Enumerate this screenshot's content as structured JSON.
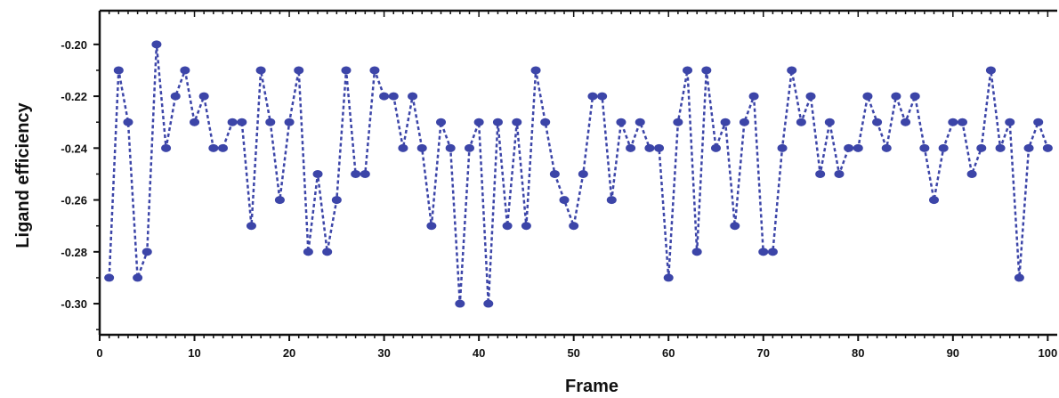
{
  "chart_data": {
    "type": "line",
    "title": "",
    "xlabel": "Frame",
    "ylabel": "Ligand efficiency",
    "xlim": [
      0,
      101
    ],
    "ylim": [
      -0.312,
      -0.187
    ],
    "x_ticks": [
      0,
      10,
      20,
      30,
      40,
      50,
      60,
      70,
      80,
      90,
      100
    ],
    "y_ticks": [
      -0.3,
      -0.28,
      -0.26,
      -0.24,
      -0.22,
      -0.2
    ],
    "y_tick_labels": [
      "-0.30",
      "-0.28",
      "-0.26",
      "-0.24",
      "-0.22",
      "-0.20"
    ],
    "grid": false,
    "legend": "none",
    "line_style": "dotted",
    "color": "#3c45a8",
    "series": [
      {
        "x": [
          1,
          2,
          3,
          4,
          5,
          6,
          7,
          8,
          9,
          10,
          11,
          12,
          13,
          14,
          15,
          16,
          17,
          18,
          19,
          20,
          21,
          22,
          23,
          24,
          25,
          26,
          27,
          28,
          29,
          30,
          31,
          32,
          33,
          34,
          35,
          36,
          37,
          38,
          39,
          40,
          41,
          42,
          43,
          44,
          45,
          46,
          47,
          48,
          49,
          50,
          51,
          52,
          53,
          54,
          55,
          56,
          57,
          58,
          59,
          60,
          61,
          62,
          63,
          64,
          65,
          66,
          67,
          68,
          69,
          70,
          71,
          72,
          73,
          74,
          75,
          76,
          77,
          78,
          79,
          80,
          81,
          82,
          83,
          84,
          85,
          86,
          87,
          88,
          89,
          90,
          91,
          92,
          93,
          94,
          95,
          96,
          97,
          98,
          99,
          100
        ],
        "values": [
          -0.29,
          -0.21,
          -0.23,
          -0.29,
          -0.28,
          -0.2,
          -0.24,
          -0.22,
          -0.21,
          -0.23,
          -0.22,
          -0.24,
          -0.24,
          -0.23,
          -0.23,
          -0.27,
          -0.21,
          -0.23,
          -0.26,
          -0.23,
          -0.21,
          -0.28,
          -0.25,
          -0.28,
          -0.26,
          -0.21,
          -0.25,
          -0.25,
          -0.21,
          -0.22,
          -0.22,
          -0.24,
          -0.22,
          -0.24,
          -0.27,
          -0.23,
          -0.24,
          -0.3,
          -0.24,
          -0.23,
          -0.3,
          -0.23,
          -0.27,
          -0.23,
          -0.27,
          -0.21,
          -0.23,
          -0.25,
          -0.26,
          -0.27,
          -0.25,
          -0.22,
          -0.22,
          -0.26,
          -0.23,
          -0.24,
          -0.23,
          -0.24,
          -0.24,
          -0.29,
          -0.23,
          -0.21,
          -0.28,
          -0.21,
          -0.24,
          -0.23,
          -0.27,
          -0.23,
          -0.22,
          -0.28,
          -0.28,
          -0.24,
          -0.21,
          -0.23,
          -0.22,
          -0.25,
          -0.23,
          -0.25,
          -0.24,
          -0.24,
          -0.22,
          -0.23,
          -0.24,
          -0.22,
          -0.23,
          -0.22,
          -0.24,
          -0.26,
          -0.24,
          -0.23,
          -0.23,
          -0.25,
          -0.24,
          -0.21,
          -0.24,
          -0.23,
          -0.29,
          -0.24,
          -0.23,
          -0.24
        ]
      }
    ]
  }
}
